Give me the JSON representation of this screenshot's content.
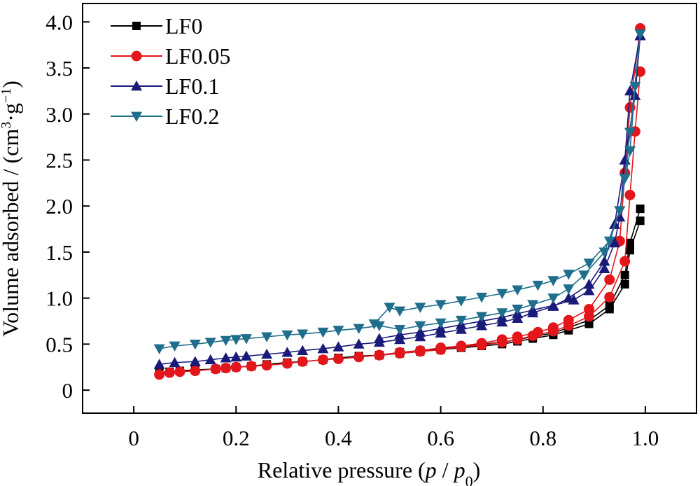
{
  "chart_data": {
    "type": "scatter",
    "xlabel_parts": [
      {
        "text": "Relative pressure (",
        "italic": false,
        "sub": false
      },
      {
        "text": "p",
        "italic": true,
        "sub": false
      },
      {
        "text": " / ",
        "italic": false,
        "sub": false
      },
      {
        "text": "p",
        "italic": true,
        "sub": false
      },
      {
        "text": "0",
        "italic": false,
        "sub": true
      },
      {
        "text": ")",
        "italic": false,
        "sub": false
      }
    ],
    "ylabel_parts": [
      {
        "text": "Volume adsorbed / (cm",
        "sup": false
      },
      {
        "text": "3",
        "sup": true
      },
      {
        "text": "·g",
        "sup": false
      },
      {
        "text": "−1",
        "sup": true
      },
      {
        "text": ")",
        "sup": false
      }
    ],
    "xlim": [
      -0.1,
      1.1
    ],
    "ylim": [
      -0.25,
      4.2
    ],
    "x_ticks": [
      0,
      0.2,
      0.4,
      0.6,
      0.8,
      1.0
    ],
    "x_tick_labels": [
      "0",
      "0.2",
      "0.4",
      "0.6",
      "0.8",
      "1.0"
    ],
    "y_ticks": [
      0,
      0.5,
      1.0,
      1.5,
      2.0,
      2.5,
      3.0,
      3.5,
      4.0
    ],
    "y_tick_labels": [
      "0",
      "0.5",
      "1.0",
      "1.5",
      "2.0",
      "2.5",
      "3.0",
      "3.5",
      "4.0"
    ],
    "grid": false,
    "legend_position": "top-left",
    "series": [
      {
        "name": "LF0",
        "color": "#000000",
        "marker": "square",
        "adsorption": {
          "x": [
            0.05,
            0.07,
            0.09,
            0.12,
            0.16,
            0.18,
            0.2,
            0.23,
            0.26,
            0.3,
            0.33,
            0.37,
            0.4,
            0.44,
            0.48,
            0.52,
            0.56,
            0.6,
            0.64,
            0.68,
            0.72,
            0.75,
            0.78,
            0.82,
            0.85,
            0.89,
            0.93,
            0.96,
            0.97,
            0.99
          ],
          "y": [
            0.19,
            0.2,
            0.21,
            0.22,
            0.23,
            0.24,
            0.25,
            0.26,
            0.28,
            0.3,
            0.31,
            0.33,
            0.35,
            0.37,
            0.38,
            0.4,
            0.42,
            0.44,
            0.46,
            0.48,
            0.5,
            0.53,
            0.56,
            0.6,
            0.65,
            0.72,
            0.88,
            1.15,
            1.52,
            1.84
          ]
        },
        "desorption": {
          "x": [
            0.99,
            0.97,
            0.96,
            0.93,
            0.89,
            0.85,
            0.82,
            0.78,
            0.75,
            0.72,
            0.68,
            0.64,
            0.6,
            0.56,
            0.52,
            0.48
          ],
          "y": [
            1.97,
            1.6,
            1.25,
            0.92,
            0.76,
            0.68,
            0.62,
            0.58,
            0.55,
            0.52,
            0.5,
            0.47,
            0.45,
            0.43,
            0.41,
            0.38
          ]
        }
      },
      {
        "name": "LF0.05",
        "color": "#e3161b",
        "marker": "circle",
        "adsorption": {
          "x": [
            0.05,
            0.07,
            0.09,
            0.12,
            0.16,
            0.18,
            0.2,
            0.23,
            0.26,
            0.3,
            0.33,
            0.37,
            0.4,
            0.44,
            0.48,
            0.52,
            0.56,
            0.6,
            0.64,
            0.68,
            0.72,
            0.75,
            0.78,
            0.82,
            0.85,
            0.89,
            0.93,
            0.96,
            0.97,
            0.98,
            0.99
          ],
          "y": [
            0.17,
            0.19,
            0.2,
            0.21,
            0.23,
            0.24,
            0.25,
            0.26,
            0.27,
            0.29,
            0.31,
            0.33,
            0.34,
            0.36,
            0.38,
            0.4,
            0.42,
            0.44,
            0.47,
            0.49,
            0.52,
            0.55,
            0.59,
            0.64,
            0.7,
            0.8,
            1.01,
            1.4,
            2.12,
            2.81,
            3.46
          ]
        },
        "desorption": {
          "x": [
            0.99,
            0.97,
            0.96,
            0.95,
            0.93,
            0.89,
            0.85,
            0.82,
            0.79,
            0.75,
            0.72,
            0.68,
            0.64,
            0.6,
            0.56,
            0.52,
            0.48
          ],
          "y": [
            3.93,
            3.07,
            2.36,
            1.62,
            1.2,
            0.88,
            0.76,
            0.68,
            0.63,
            0.58,
            0.55,
            0.51,
            0.48,
            0.46,
            0.43,
            0.41,
            0.38
          ]
        }
      },
      {
        "name": "LF0.1",
        "color": "#1a1a7a",
        "marker": "triangle-up",
        "adsorption": {
          "x": [
            0.05,
            0.08,
            0.12,
            0.15,
            0.18,
            0.2,
            0.22,
            0.26,
            0.3,
            0.33,
            0.37,
            0.4,
            0.44,
            0.48,
            0.52,
            0.56,
            0.6,
            0.64,
            0.68,
            0.72,
            0.75,
            0.78,
            0.82,
            0.85,
            0.89,
            0.92,
            0.94,
            0.96,
            0.98,
            0.99
          ],
          "y": [
            0.28,
            0.3,
            0.31,
            0.33,
            0.35,
            0.36,
            0.37,
            0.39,
            0.41,
            0.43,
            0.45,
            0.47,
            0.5,
            0.52,
            0.55,
            0.58,
            0.62,
            0.66,
            0.7,
            0.74,
            0.78,
            0.84,
            0.91,
            1.0,
            1.15,
            1.4,
            1.8,
            2.5,
            3.2,
            3.85
          ]
        },
        "desorption": {
          "x": [
            0.99,
            0.97,
            0.96,
            0.95,
            0.94,
            0.92,
            0.89,
            0.86,
            0.82,
            0.78,
            0.75,
            0.72,
            0.68,
            0.64,
            0.6,
            0.56,
            0.52,
            0.48
          ],
          "y": [
            3.85,
            3.25,
            2.5,
            1.88,
            1.6,
            1.32,
            1.08,
            0.98,
            0.92,
            0.87,
            0.83,
            0.79,
            0.75,
            0.71,
            0.67,
            0.63,
            0.6,
            0.56
          ]
        }
      },
      {
        "name": "LF0.2",
        "color": "#1e6e8c",
        "marker": "triangle-down",
        "adsorption": {
          "x": [
            0.05,
            0.08,
            0.12,
            0.15,
            0.18,
            0.2,
            0.22,
            0.26,
            0.3,
            0.33,
            0.37,
            0.4,
            0.44,
            0.48,
            0.52,
            0.56,
            0.6,
            0.64,
            0.68,
            0.72,
            0.75,
            0.78,
            0.82,
            0.85,
            0.88,
            0.92,
            0.95,
            0.97,
            0.98,
            0.99
          ],
          "y": [
            0.45,
            0.48,
            0.5,
            0.52,
            0.54,
            0.55,
            0.56,
            0.58,
            0.6,
            0.61,
            0.63,
            0.65,
            0.67,
            0.7,
            0.66,
            0.7,
            0.73,
            0.76,
            0.8,
            0.84,
            0.88,
            0.93,
            1.0,
            1.1,
            1.25,
            1.5,
            1.95,
            2.6,
            3.3,
            3.87
          ]
        },
        "desorption": {
          "x": [
            0.99,
            0.97,
            0.96,
            0.95,
            0.93,
            0.89,
            0.85,
            0.82,
            0.79,
            0.75,
            0.72,
            0.68,
            0.64,
            0.6,
            0.56,
            0.52,
            0.5,
            0.47
          ],
          "y": [
            3.87,
            2.8,
            2.3,
            1.95,
            1.62,
            1.38,
            1.26,
            1.19,
            1.14,
            1.09,
            1.05,
            1.01,
            0.97,
            0.93,
            0.9,
            0.86,
            0.9,
            0.72
          ]
        }
      }
    ]
  }
}
